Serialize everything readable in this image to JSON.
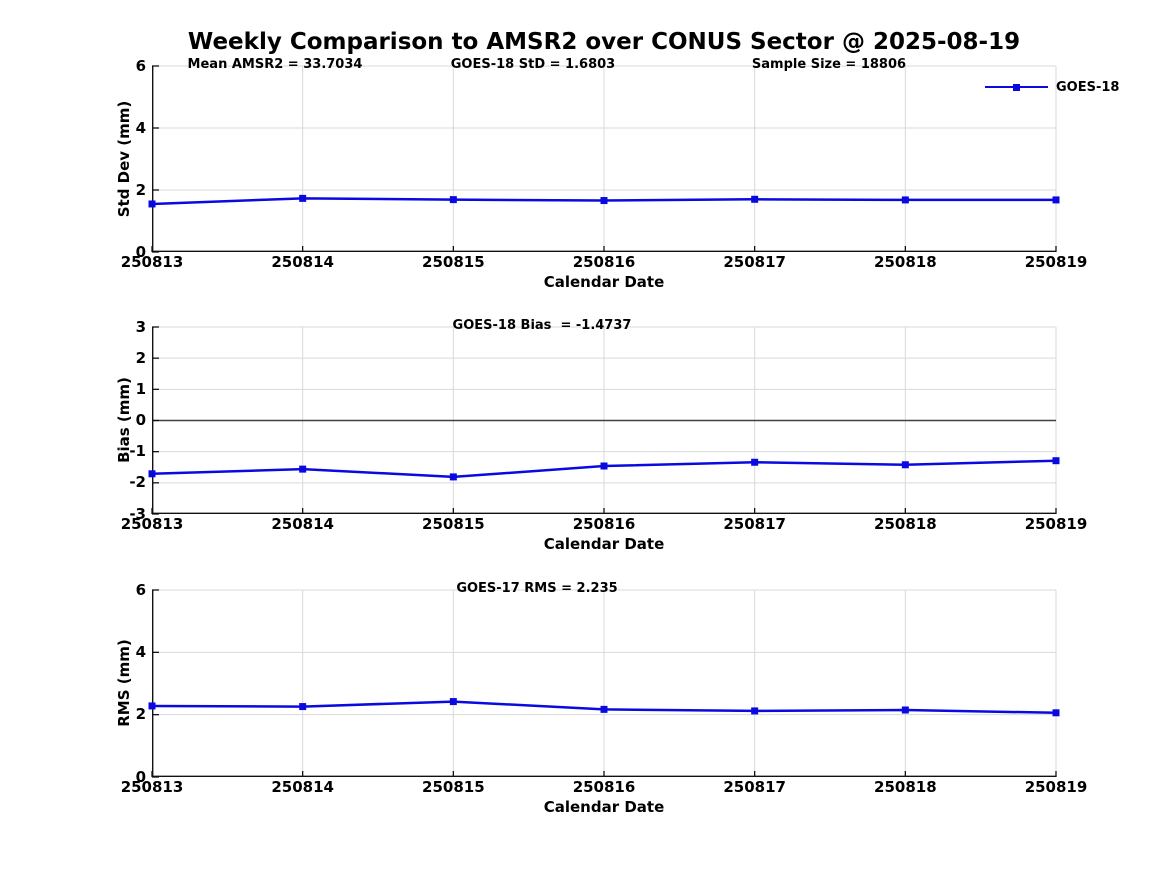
{
  "title": "Weekly Comparison to AMSR2 over CONUS Sector @ 2025-08-19",
  "colors": {
    "line": "#0a0ae0",
    "grid": "#d9d9d9",
    "axis": "#111111",
    "zero_line": "#404040",
    "text": "#000000",
    "background": "#ffffff"
  },
  "legend": {
    "label": "GOES-18"
  },
  "chart_data": [
    {
      "type": "line",
      "xlabel": "Calendar Date",
      "ylabel": "Std Dev (mm)",
      "categories": [
        "250813",
        "250814",
        "250815",
        "250816",
        "250817",
        "250818",
        "250819"
      ],
      "series": [
        {
          "name": "GOES-18",
          "values": [
            1.55,
            1.73,
            1.69,
            1.66,
            1.7,
            1.68,
            1.68
          ]
        }
      ],
      "ylim": [
        0,
        6
      ],
      "yticks": [
        0,
        2,
        4,
        6
      ],
      "grid": true,
      "marker": "square",
      "legend_position": "top-right",
      "annotations": [
        "Mean AMSR2 = 33.7034",
        "GOES-18 StD = 1.6803",
        "Sample Size = 18806"
      ]
    },
    {
      "type": "line",
      "xlabel": "Calendar Date",
      "ylabel": "Bias (mm)",
      "categories": [
        "250813",
        "250814",
        "250815",
        "250816",
        "250817",
        "250818",
        "250819"
      ],
      "series": [
        {
          "name": "GOES-18",
          "values": [
            -1.71,
            -1.56,
            -1.81,
            -1.46,
            -1.34,
            -1.42,
            -1.29
          ]
        }
      ],
      "ylim": [
        -3,
        3
      ],
      "yticks": [
        -3,
        -2,
        -1,
        0,
        1,
        2,
        3
      ],
      "grid": true,
      "zero_line": true,
      "marker": "square",
      "annotations": [
        "GOES-18 Bias  = -1.4737"
      ]
    },
    {
      "type": "line",
      "xlabel": "Calendar Date",
      "ylabel": "RMS (mm)",
      "categories": [
        "250813",
        "250814",
        "250815",
        "250816",
        "250817",
        "250818",
        "250819"
      ],
      "series": [
        {
          "name": "GOES-18",
          "values": [
            2.28,
            2.26,
            2.42,
            2.17,
            2.12,
            2.15,
            2.06
          ]
        }
      ],
      "ylim": [
        0,
        6
      ],
      "yticks": [
        0,
        2,
        4,
        6
      ],
      "grid": true,
      "marker": "square",
      "annotations": [
        "GOES-17 RMS = 2.235"
      ]
    }
  ]
}
